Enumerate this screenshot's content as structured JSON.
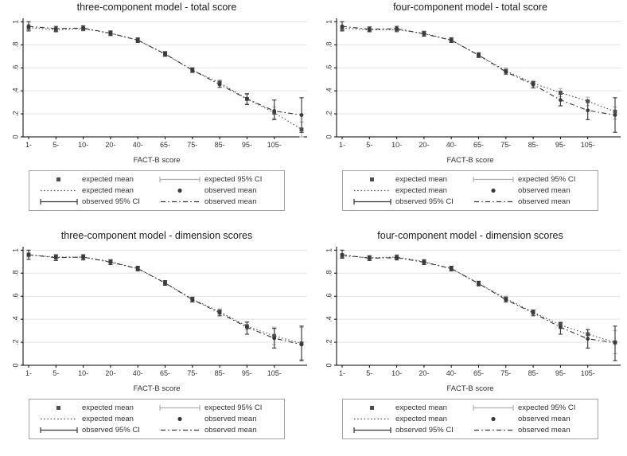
{
  "page": {
    "background": "#ffffff"
  },
  "colors": {
    "expected_marker": "#4d4d4d",
    "observed_marker": "#3a3a3a",
    "expected_line": "#555555",
    "observed_line": "#333333",
    "expected_ci": "#b0b0b0",
    "observed_ci": "#333333",
    "grid": "#e3e3e3",
    "axis": "#000000",
    "tick_text": "#333333",
    "legend_border": "#a3a3a3"
  },
  "axis": {
    "x_label": "FACT-B score",
    "y_tick_values": [
      0,
      0.2,
      0.4,
      0.6,
      0.8,
      1
    ],
    "y_tick_labels": [
      "0",
      ".2",
      ".4",
      ".6",
      ".8",
      "1"
    ],
    "x_tick_labels": [
      "1-",
      "5-",
      "10-",
      "20-",
      "40-",
      "65-",
      "75-",
      "85-",
      "95-",
      "105-",
      ""
    ]
  },
  "legend": {
    "items": [
      {
        "symbol": "square-marker",
        "label": "expected mean"
      },
      {
        "symbol": "light-capped-line",
        "label": "expected 95% CI"
      },
      {
        "symbol": "dotted-line",
        "label": "expected mean"
      },
      {
        "symbol": "circle-marker",
        "label": "observed mean"
      },
      {
        "symbol": "dark-capped-line",
        "label": "observed 95% CI"
      },
      {
        "symbol": "dashdot-line",
        "label": "observed mean"
      }
    ]
  },
  "chart_data": [
    {
      "id": "three-component-total",
      "type": "line",
      "title": "three-component  model - total score",
      "xlabel": "FACT-B score",
      "ylim": [
        0,
        1.03
      ],
      "grid": true,
      "legend_position": "below",
      "categories": [
        "1-",
        "5-",
        "10-",
        "20-",
        "40-",
        "65-",
        "75-",
        "85-",
        "95-",
        "105-",
        ""
      ],
      "series": [
        {
          "name": "expected mean",
          "type": "line-marker",
          "marker": "square",
          "linestyle": "dotted",
          "values": [
            0.95,
            0.93,
            0.94,
            0.9,
            0.84,
            0.72,
            0.58,
            0.47,
            0.33,
            0.21,
            0.065
          ]
        },
        {
          "name": "observed mean",
          "type": "line-marker",
          "marker": "circle",
          "linestyle": "dashdot",
          "values": [
            0.96,
            0.94,
            0.945,
            0.9,
            0.84,
            0.72,
            0.58,
            0.455,
            0.33,
            0.225,
            0.19
          ]
        },
        {
          "name": "expected 95% CI",
          "type": "ci",
          "ranges": [
            [
              0.93,
              0.975
            ],
            [
              0.91,
              0.95
            ],
            [
              0.92,
              0.96
            ],
            [
              0.885,
              0.92
            ],
            [
              0.825,
              0.855
            ],
            [
              0.7,
              0.74
            ],
            [
              0.56,
              0.6
            ],
            [
              0.445,
              0.495
            ],
            [
              0.29,
              0.37
            ],
            [
              0.16,
              0.26
            ],
            [
              0.0,
              0.13
            ]
          ]
        },
        {
          "name": "observed 95% CI",
          "type": "ci",
          "ranges": [
            [
              0.92,
              1.0
            ],
            [
              0.915,
              0.96
            ],
            [
              0.925,
              0.965
            ],
            [
              0.88,
              0.92
            ],
            [
              0.82,
              0.86
            ],
            [
              0.7,
              0.74
            ],
            [
              0.56,
              0.6
            ],
            [
              0.43,
              0.485
            ],
            [
              0.28,
              0.375
            ],
            [
              0.15,
              0.32
            ],
            [
              0.04,
              0.34
            ]
          ]
        }
      ]
    },
    {
      "id": "four-component-total",
      "type": "line",
      "title": "four-component model - total score",
      "xlabel": "FACT-B score",
      "ylim": [
        0,
        1.03
      ],
      "grid": true,
      "legend_position": "below",
      "categories": [
        "1-",
        "5-",
        "10-",
        "20-",
        "40-",
        "65-",
        "75-",
        "85-",
        "95-",
        "105-",
        ""
      ],
      "series": [
        {
          "name": "expected mean",
          "type": "line-marker",
          "marker": "square",
          "linestyle": "dotted",
          "values": [
            0.945,
            0.93,
            0.93,
            0.9,
            0.84,
            0.71,
            0.575,
            0.465,
            0.385,
            0.31,
            0.22
          ]
        },
        {
          "name": "observed mean",
          "type": "line-marker",
          "marker": "circle",
          "linestyle": "dashdot",
          "values": [
            0.96,
            0.935,
            0.94,
            0.895,
            0.84,
            0.71,
            0.565,
            0.455,
            0.32,
            0.23,
            0.19
          ]
        },
        {
          "name": "expected 95% CI",
          "type": "ci",
          "ranges": [
            [
              0.925,
              0.965
            ],
            [
              0.91,
              0.95
            ],
            [
              0.91,
              0.95
            ],
            [
              0.88,
              0.92
            ],
            [
              0.82,
              0.86
            ],
            [
              0.69,
              0.73
            ],
            [
              0.555,
              0.6
            ],
            [
              0.44,
              0.49
            ],
            [
              0.35,
              0.42
            ],
            [
              0.27,
              0.345
            ],
            [
              0.155,
              0.26
            ]
          ]
        },
        {
          "name": "observed 95% CI",
          "type": "ci",
          "ranges": [
            [
              0.92,
              1.0
            ],
            [
              0.915,
              0.955
            ],
            [
              0.92,
              0.96
            ],
            [
              0.875,
              0.915
            ],
            [
              0.82,
              0.86
            ],
            [
              0.69,
              0.73
            ],
            [
              0.545,
              0.585
            ],
            [
              0.425,
              0.48
            ],
            [
              0.27,
              0.37
            ],
            [
              0.15,
              0.31
            ],
            [
              0.04,
              0.34
            ]
          ]
        }
      ]
    },
    {
      "id": "three-component-dimension",
      "type": "line",
      "title": "three-component  model - dimension scores",
      "xlabel": "FACT-B score",
      "ylim": [
        0,
        1.03
      ],
      "grid": true,
      "legend_position": "below",
      "categories": [
        "1-",
        "5-",
        "10-",
        "20-",
        "40-",
        "65-",
        "75-",
        "85-",
        "95-",
        "105-",
        ""
      ],
      "series": [
        {
          "name": "expected mean",
          "type": "line-marker",
          "marker": "square",
          "linestyle": "dotted",
          "values": [
            0.96,
            0.94,
            0.94,
            0.9,
            0.84,
            0.715,
            0.575,
            0.465,
            0.34,
            0.255,
            0.19
          ]
        },
        {
          "name": "observed mean",
          "type": "line-marker",
          "marker": "circle",
          "linestyle": "dashdot",
          "values": [
            0.96,
            0.935,
            0.94,
            0.895,
            0.84,
            0.715,
            0.57,
            0.455,
            0.33,
            0.235,
            0.18
          ]
        },
        {
          "name": "expected 95% CI",
          "type": "ci",
          "ranges": [
            [
              0.94,
              0.98
            ],
            [
              0.92,
              0.96
            ],
            [
              0.92,
              0.96
            ],
            [
              0.885,
              0.92
            ],
            [
              0.825,
              0.855
            ],
            [
              0.695,
              0.735
            ],
            [
              0.555,
              0.595
            ],
            [
              0.445,
              0.49
            ],
            [
              0.31,
              0.375
            ],
            [
              0.18,
              0.33
            ],
            [
              0.05,
              0.33
            ]
          ]
        },
        {
          "name": "observed 95% CI",
          "type": "ci",
          "ranges": [
            [
              0.92,
              1.0
            ],
            [
              0.91,
              0.96
            ],
            [
              0.915,
              0.96
            ],
            [
              0.875,
              0.915
            ],
            [
              0.82,
              0.86
            ],
            [
              0.695,
              0.735
            ],
            [
              0.55,
              0.59
            ],
            [
              0.43,
              0.48
            ],
            [
              0.27,
              0.375
            ],
            [
              0.15,
              0.32
            ],
            [
              0.04,
              0.34
            ]
          ]
        }
      ]
    },
    {
      "id": "four-component-dimension",
      "type": "line",
      "title": "four-component model - dimension scores",
      "xlabel": "FACT-B score",
      "ylim": [
        0,
        1.03
      ],
      "grid": true,
      "legend_position": "below",
      "categories": [
        "1-",
        "5-",
        "10-",
        "20-",
        "40-",
        "65-",
        "75-",
        "85-",
        "95-",
        "105-",
        ""
      ],
      "series": [
        {
          "name": "expected mean",
          "type": "line-marker",
          "marker": "square",
          "linestyle": "dotted",
          "values": [
            0.95,
            0.935,
            0.94,
            0.9,
            0.84,
            0.71,
            0.58,
            0.46,
            0.35,
            0.27,
            0.2
          ]
        },
        {
          "name": "observed mean",
          "type": "line-marker",
          "marker": "circle",
          "linestyle": "dashdot",
          "values": [
            0.96,
            0.93,
            0.935,
            0.895,
            0.84,
            0.71,
            0.57,
            0.455,
            0.33,
            0.23,
            0.195
          ]
        },
        {
          "name": "expected 95% CI",
          "type": "ci",
          "ranges": [
            [
              0.93,
              0.97
            ],
            [
              0.915,
              0.955
            ],
            [
              0.92,
              0.96
            ],
            [
              0.88,
              0.92
            ],
            [
              0.82,
              0.86
            ],
            [
              0.69,
              0.73
            ],
            [
              0.56,
              0.6
            ],
            [
              0.44,
              0.48
            ],
            [
              0.32,
              0.38
            ],
            [
              0.235,
              0.31
            ],
            [
              0.1,
              0.3
            ]
          ]
        },
        {
          "name": "observed 95% CI",
          "type": "ci",
          "ranges": [
            [
              0.93,
              1.0
            ],
            [
              0.91,
              0.95
            ],
            [
              0.915,
              0.955
            ],
            [
              0.875,
              0.915
            ],
            [
              0.82,
              0.86
            ],
            [
              0.69,
              0.73
            ],
            [
              0.55,
              0.59
            ],
            [
              0.43,
              0.48
            ],
            [
              0.27,
              0.37
            ],
            [
              0.15,
              0.31
            ],
            [
              0.04,
              0.34
            ]
          ]
        }
      ]
    }
  ]
}
